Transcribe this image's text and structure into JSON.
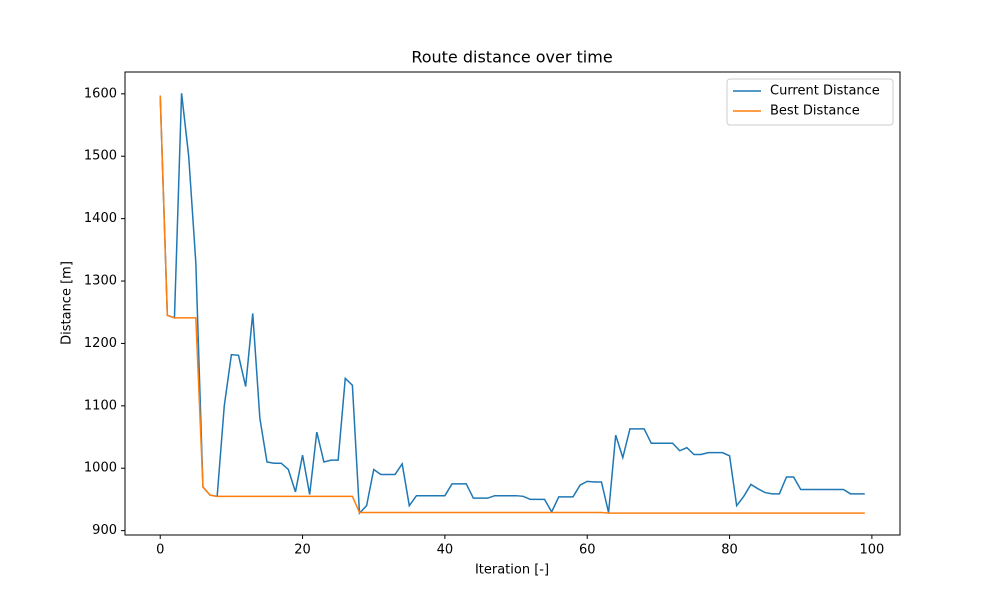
{
  "chart_data": {
    "type": "line",
    "title": "Route distance over time",
    "xlabel": "Iteration [-]",
    "ylabel": "Distance [m]",
    "x": [
      0,
      1,
      2,
      3,
      4,
      5,
      6,
      7,
      8,
      9,
      10,
      11,
      12,
      13,
      14,
      15,
      16,
      17,
      18,
      19,
      20,
      21,
      22,
      23,
      24,
      25,
      26,
      27,
      28,
      29,
      30,
      31,
      32,
      33,
      34,
      35,
      36,
      37,
      38,
      39,
      40,
      41,
      42,
      43,
      44,
      45,
      46,
      47,
      48,
      49,
      50,
      51,
      52,
      53,
      54,
      55,
      56,
      57,
      58,
      59,
      60,
      61,
      62,
      63,
      64,
      65,
      66,
      67,
      68,
      69,
      70,
      71,
      72,
      73,
      74,
      75,
      76,
      77,
      78,
      79,
      80,
      81,
      82,
      83,
      84,
      85,
      86,
      87,
      88,
      89,
      90,
      91,
      92,
      93,
      94,
      95,
      96,
      97,
      98,
      99
    ],
    "series": [
      {
        "name": "Current Distance",
        "color": "#1f77b4",
        "values": [
          1597,
          1245,
          1241,
          1601,
          1500,
          1330,
          970,
          957,
          955,
          1100,
          1182,
          1181,
          1131,
          1248,
          1080,
          1010,
          1008,
          1008,
          998,
          962,
          1021,
          958,
          1058,
          1010,
          1013,
          1013,
          1144,
          1133,
          928,
          940,
          998,
          990,
          990,
          990,
          1007,
          940,
          956,
          956,
          956,
          956,
          956,
          975,
          975,
          975,
          952,
          952,
          952,
          956,
          956,
          956,
          956,
          955,
          950,
          950,
          950,
          930,
          954,
          954,
          954,
          973,
          979,
          978,
          978,
          929,
          1053,
          1017,
          1063,
          1063,
          1063,
          1040,
          1040,
          1040,
          1040,
          1028,
          1033,
          1022,
          1022,
          1025,
          1025,
          1025,
          1020,
          940,
          955,
          974,
          967,
          961,
          959,
          959,
          986,
          986,
          966,
          966,
          966,
          966,
          966,
          966,
          966,
          959,
          959,
          959
        ]
      },
      {
        "name": "Best Distance",
        "color": "#ff7f0e",
        "values": [
          1597,
          1245,
          1241,
          1241,
          1241,
          1241,
          970,
          957,
          955,
          955,
          955,
          955,
          955,
          955,
          955,
          955,
          955,
          955,
          955,
          955,
          955,
          955,
          955,
          955,
          955,
          955,
          955,
          955,
          929,
          929,
          929,
          929,
          929,
          929,
          929,
          929,
          929,
          929,
          929,
          929,
          929,
          929,
          929,
          929,
          929,
          929,
          929,
          929,
          929,
          929,
          929,
          929,
          929,
          929,
          929,
          929,
          929,
          929,
          929,
          929,
          929,
          929,
          929,
          928,
          928,
          928,
          928,
          928,
          928,
          928,
          928,
          928,
          928,
          928,
          928,
          928,
          928,
          928,
          928,
          928,
          928,
          928,
          928,
          928,
          928,
          928,
          928,
          928,
          928,
          928,
          928,
          928,
          928,
          928,
          928,
          928,
          928,
          928,
          928,
          928
        ]
      }
    ],
    "xlim": [
      -4.95,
      103.95
    ],
    "ylim": [
      893,
      1635
    ],
    "xticks": [
      0,
      20,
      40,
      60,
      80,
      100
    ],
    "yticks": [
      900,
      1000,
      1100,
      1200,
      1300,
      1400,
      1500,
      1600
    ],
    "legend": "upper right"
  }
}
